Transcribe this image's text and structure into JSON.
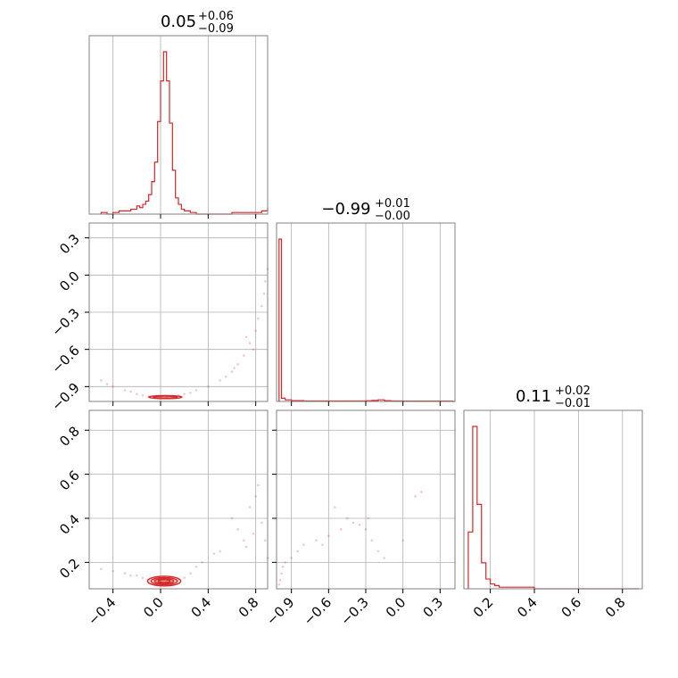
{
  "chart_data": {
    "type": "corner",
    "color": "#d62728",
    "grid": true,
    "parameters": [
      {
        "title": {
          "median": "0.05",
          "plus": "+0.06",
          "minus": "−0.09"
        },
        "range": [
          -0.6,
          0.9
        ]
      },
      {
        "title": {
          "median": "−0.99",
          "plus": "+0.01",
          "minus": "−0.00"
        },
        "range": [
          -1.02,
          0.42
        ]
      },
      {
        "title": {
          "median": "0.11",
          "plus": "+0.02",
          "minus": "−0.01"
        },
        "range": [
          0.08,
          0.89
        ]
      }
    ],
    "ticks": {
      "p0": {
        "values": [
          -0.4,
          0.0,
          0.4,
          0.8
        ],
        "labels": [
          "−0.4",
          "0.0",
          "0.4",
          "0.8"
        ]
      },
      "p1": {
        "values": [
          -0.9,
          -0.6,
          -0.3,
          0.0,
          0.3
        ],
        "labels": [
          "−0.9",
          "−0.6",
          "−0.3",
          "0.0",
          "0.3"
        ]
      },
      "p2": {
        "values": [
          0.2,
          0.4,
          0.6,
          0.8
        ],
        "labels": [
          "0.2",
          "0.4",
          "0.6",
          "0.8"
        ]
      }
    },
    "hist_p0": {
      "x": [
        -0.5,
        -0.45,
        -0.4,
        -0.35,
        -0.3,
        -0.25,
        -0.2,
        -0.175,
        -0.15,
        -0.125,
        -0.1,
        -0.075,
        -0.05,
        -0.025,
        0.0,
        0.025,
        0.05,
        0.075,
        0.1,
        0.125,
        0.15,
        0.175,
        0.2,
        0.25,
        0.3,
        0.5,
        0.6,
        0.7,
        0.8,
        0.85,
        0.9
      ],
      "density": [
        0.01,
        0.0,
        0.01,
        0.02,
        0.02,
        0.03,
        0.05,
        0.04,
        0.06,
        0.08,
        0.12,
        0.2,
        0.32,
        0.57,
        0.82,
        1.0,
        0.82,
        0.56,
        0.27,
        0.1,
        0.06,
        0.03,
        0.02,
        0.01,
        0.0,
        0.0,
        0.01,
        0.01,
        0.01,
        0.02,
        0.04
      ]
    },
    "hist_p1": {
      "x": [
        -1.0,
        -0.98,
        -0.95,
        -0.9,
        -0.8,
        -0.7,
        -0.5,
        -0.3,
        -0.25,
        -0.2,
        -0.15,
        -0.1,
        0.0,
        0.2,
        0.4
      ],
      "density": [
        1.0,
        0.02,
        0.01,
        0.005,
        0.003,
        0.003,
        0.003,
        0.004,
        0.006,
        0.01,
        0.005,
        0.003,
        0.002,
        0.002,
        0.0
      ]
    },
    "hist_p2": {
      "x": [
        0.1,
        0.12,
        0.14,
        0.16,
        0.18,
        0.2,
        0.22,
        0.24,
        0.3,
        0.35,
        0.4,
        0.5,
        0.6,
        0.7,
        0.8,
        0.85
      ],
      "density": [
        0.35,
        1.0,
        0.52,
        0.16,
        0.06,
        0.03,
        0.02,
        0.01,
        0.01,
        0.01,
        0.0,
        0.0,
        0.0,
        0.0,
        0.0,
        0.0
      ]
    },
    "scatter_p0_p1": {
      "x": [
        -0.5,
        -0.45,
        -0.4,
        -0.3,
        -0.25,
        -0.2,
        -0.15,
        -0.1,
        -0.05,
        0.0,
        0.05,
        0.1,
        0.15,
        0.2,
        0.25,
        0.3,
        0.4,
        0.5,
        0.55,
        0.6,
        0.65,
        0.7,
        0.75,
        0.8,
        0.82,
        0.85,
        0.87,
        0.88,
        0.9,
        0.78,
        0.72,
        0.62
      ],
      "y": [
        -0.85,
        -0.88,
        -0.9,
        -0.93,
        -0.94,
        -0.96,
        -0.97,
        -0.98,
        -0.99,
        -0.99,
        -0.99,
        -0.98,
        -0.97,
        -0.96,
        -0.95,
        -0.93,
        -0.9,
        -0.85,
        -0.82,
        -0.78,
        -0.72,
        -0.65,
        -0.55,
        -0.45,
        -0.35,
        -0.25,
        -0.15,
        -0.05,
        0.05,
        -0.6,
        -0.5,
        -0.75
      ]
    },
    "scatter_p0_p2": {
      "x": [
        -0.5,
        -0.4,
        -0.3,
        -0.25,
        -0.2,
        -0.15,
        -0.1,
        -0.05,
        0.0,
        0.05,
        0.1,
        0.15,
        0.2,
        0.25,
        0.3,
        0.5,
        0.6,
        0.65,
        0.7,
        0.75,
        0.8,
        0.82,
        0.85,
        0.88,
        0.9,
        0.72,
        0.78,
        0.35,
        0.45
      ],
      "y": [
        0.17,
        0.16,
        0.15,
        0.14,
        0.14,
        0.13,
        0.12,
        0.12,
        0.11,
        0.11,
        0.11,
        0.12,
        0.13,
        0.15,
        0.18,
        0.25,
        0.4,
        0.35,
        0.3,
        0.45,
        0.5,
        0.55,
        0.38,
        0.3,
        0.22,
        0.27,
        0.33,
        0.2,
        0.24
      ]
    },
    "scatter_p1_p2": {
      "x": [
        -1.0,
        -0.99,
        -0.98,
        -0.97,
        -0.95,
        -0.9,
        -0.85,
        -0.8,
        -0.7,
        -0.6,
        -0.5,
        -0.45,
        -0.4,
        -0.35,
        -0.3,
        -0.28,
        -0.25,
        -0.2,
        -0.15,
        0.0,
        0.1,
        0.15,
        -0.55,
        -0.65
      ],
      "y": [
        0.1,
        0.12,
        0.15,
        0.18,
        0.2,
        0.22,
        0.25,
        0.28,
        0.3,
        0.32,
        0.35,
        0.4,
        0.38,
        0.37,
        0.35,
        0.4,
        0.3,
        0.25,
        0.22,
        0.3,
        0.5,
        0.52,
        0.45,
        0.28
      ]
    },
    "contour_p0_p2": {
      "center": [
        0.03,
        0.115
      ],
      "levels": [
        {
          "rx": 0.14,
          "ry": 0.022
        },
        {
          "rx": 0.11,
          "ry": 0.016
        },
        {
          "rx": 0.08,
          "ry": 0.011
        },
        {
          "rx": 0.05,
          "ry": 0.007
        }
      ]
    },
    "contour_p0_p1": {
      "center": [
        0.04,
        -0.985
      ],
      "levels": [
        {
          "rx": 0.14,
          "ry": 0.012
        },
        {
          "rx": 0.1,
          "ry": 0.008
        }
      ]
    }
  }
}
